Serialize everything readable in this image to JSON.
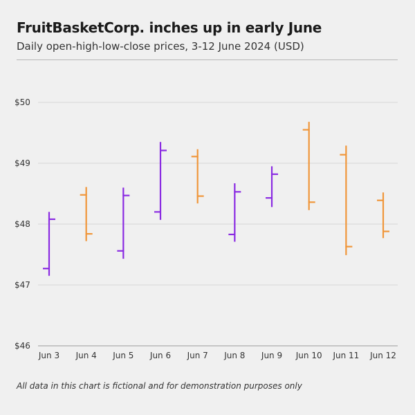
{
  "header": {
    "title": "FruitBasketCorp. inches up in early June",
    "subtitle": "Daily open-high-low-close prices, 3-12 June 2024 (USD)"
  },
  "footnote": "All data in this chart is fictional and for demonstration purposes only",
  "colors": {
    "up": "#8a2be2",
    "down": "#f0963a",
    "grid": "#d6d6d6",
    "axis": "#9a9a9a"
  },
  "chart_data": {
    "type": "ohlc",
    "title": "FruitBasketCorp. inches up in early June",
    "subtitle": "Daily open-high-low-close prices, 3-12 June 2024 (USD)",
    "ylim": [
      46,
      50
    ],
    "y_ticks": [
      50,
      49,
      48,
      47,
      46
    ],
    "y_tick_labels": [
      "$50",
      "$49",
      "$48",
      "$47",
      "$46"
    ],
    "grid": true,
    "categories": [
      "Jun 3",
      "Jun 4",
      "Jun 5",
      "Jun 6",
      "Jun 7",
      "Jun 8",
      "Jun 9",
      "Jun 10",
      "Jun 11",
      "Jun 12"
    ],
    "open": [
      47.27,
      48.48,
      47.56,
      48.2,
      49.11,
      47.83,
      48.43,
      49.55,
      49.14,
      48.39
    ],
    "high": [
      48.2,
      48.61,
      48.6,
      49.35,
      49.23,
      48.67,
      48.95,
      49.68,
      49.29,
      48.52
    ],
    "low": [
      47.15,
      47.72,
      47.43,
      48.07,
      48.34,
      47.71,
      48.28,
      48.23,
      47.49,
      47.77
    ],
    "close": [
      48.08,
      47.84,
      48.47,
      49.21,
      48.46,
      48.53,
      48.82,
      48.36,
      47.63,
      47.88
    ]
  }
}
